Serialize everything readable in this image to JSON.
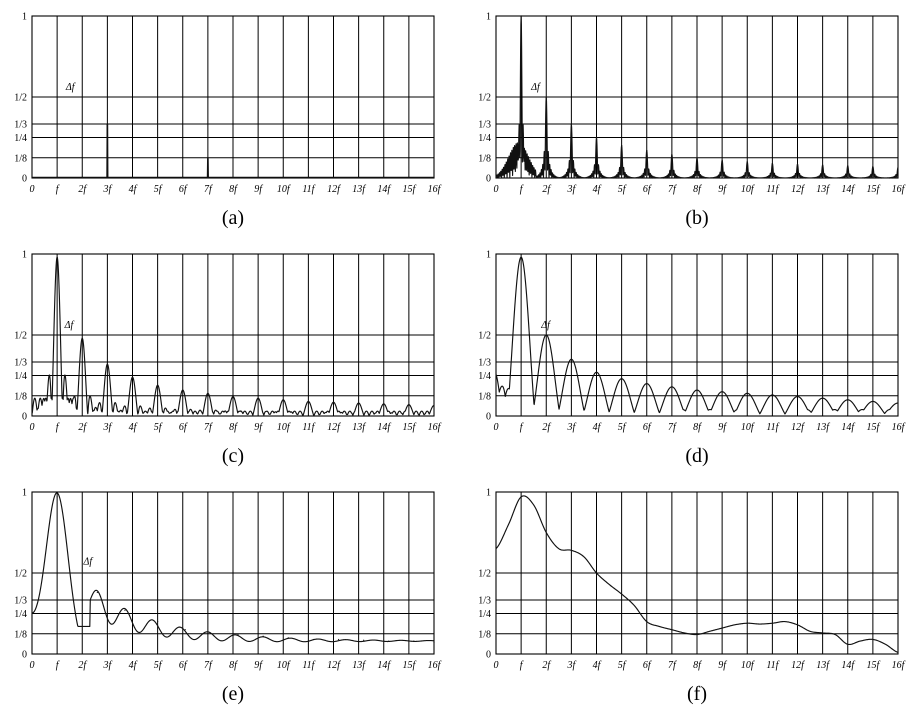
{
  "figure": {
    "x_tick_labels": [
      "0",
      "f",
      "2f",
      "3f",
      "4f",
      "5f",
      "6f",
      "7f",
      "8f",
      "9f",
      "10f",
      "11f",
      "12f",
      "13f",
      "14f",
      "15f",
      "16f"
    ],
    "y_tick_labels": [
      "1",
      "1/2",
      "1/3",
      "1/4",
      "1/8",
      "0"
    ]
  },
  "chart_data": [
    {
      "type": "line",
      "caption": "(a)",
      "annotation": "Δf",
      "xlim": [
        0,
        16
      ],
      "ylim": [
        0,
        1
      ],
      "yticks": [
        1,
        0.5,
        0.333,
        0.25,
        0.125,
        0
      ],
      "grid": true,
      "peaks": {
        "x": [
          1,
          2,
          3,
          4,
          5,
          6,
          7,
          8,
          9,
          10,
          11,
          12,
          13,
          14,
          15,
          16
        ],
        "y": [
          0.005,
          0.005,
          0.33,
          0.005,
          0.005,
          0.005,
          0.12,
          0.005,
          0.005,
          0.005,
          0.005,
          0.005,
          0.005,
          0.005,
          0.005,
          0.005
        ]
      }
    },
    {
      "type": "line",
      "caption": "(b)",
      "annotation": "Δf",
      "xlim": [
        0,
        16
      ],
      "ylim": [
        0,
        1
      ],
      "yticks": [
        1,
        0.5,
        0.333,
        0.25,
        0.125,
        0
      ],
      "grid": true,
      "peaks": {
        "x": [
          1,
          2,
          3,
          4,
          5,
          6,
          7,
          8,
          9,
          10,
          11,
          12,
          13,
          14,
          15,
          16
        ],
        "y": [
          1.0,
          0.5,
          0.33,
          0.25,
          0.2,
          0.17,
          0.145,
          0.125,
          0.11,
          0.1,
          0.09,
          0.085,
          0.08,
          0.075,
          0.07,
          0.065
        ]
      }
    },
    {
      "type": "line",
      "caption": "(c)",
      "annotation": "Δf",
      "xlim": [
        0,
        16
      ],
      "ylim": [
        0,
        1
      ],
      "yticks": [
        1,
        0.5,
        0.333,
        0.25,
        0.125,
        0
      ],
      "grid": true,
      "peaks": {
        "x": [
          1,
          2,
          3,
          4,
          5,
          6,
          7,
          8,
          9,
          10,
          11,
          12,
          13,
          14,
          15,
          16
        ],
        "y": [
          0.98,
          0.48,
          0.32,
          0.24,
          0.19,
          0.16,
          0.14,
          0.12,
          0.11,
          0.1,
          0.09,
          0.085,
          0.08,
          0.075,
          0.07,
          0.065
        ]
      }
    },
    {
      "type": "line",
      "caption": "(d)",
      "annotation": "Δf",
      "xlim": [
        0,
        16
      ],
      "ylim": [
        0,
        1
      ],
      "yticks": [
        1,
        0.5,
        0.333,
        0.25,
        0.125,
        0
      ],
      "grid": true,
      "peaks": {
        "x": [
          1,
          2,
          3,
          4,
          5,
          6,
          7,
          8,
          9,
          10,
          11,
          12,
          13,
          14,
          15,
          16
        ],
        "y": [
          0.98,
          0.5,
          0.35,
          0.27,
          0.23,
          0.2,
          0.18,
          0.16,
          0.15,
          0.14,
          0.13,
          0.12,
          0.11,
          0.1,
          0.09,
          0.08
        ]
      }
    },
    {
      "type": "line",
      "caption": "(e)",
      "annotation": "Δf",
      "xlim": [
        0,
        16
      ],
      "ylim": [
        0,
        1
      ],
      "yticks": [
        1,
        0.5,
        0.333,
        0.25,
        0.125,
        0
      ],
      "grid": true,
      "peaks": {
        "x": [
          1,
          2.6,
          3.7,
          5,
          6.1,
          7.1,
          8.2,
          9.2,
          10.2,
          11.2,
          12.2,
          13.2,
          14.2,
          15.2,
          16
        ],
        "y": [
          0.97,
          0.38,
          0.27,
          0.2,
          0.15,
          0.13,
          0.12,
          0.11,
          0.1,
          0.09,
          0.09,
          0.085,
          0.08,
          0.08,
          0.07
        ]
      }
    },
    {
      "type": "line",
      "caption": "(f)",
      "annotation": "",
      "xlim": [
        0,
        16
      ],
      "ylim": [
        0,
        1
      ],
      "yticks": [
        1,
        0.5,
        0.333,
        0.25,
        0.125,
        0
      ],
      "grid": true,
      "x": [
        0,
        0.5,
        1,
        1.5,
        2,
        2.5,
        3,
        3.5,
        4,
        4.5,
        5,
        5.5,
        6,
        6.5,
        7,
        7.5,
        8,
        8.5,
        9,
        9.5,
        10,
        10.5,
        11,
        11.5,
        12,
        12.5,
        13,
        13.5,
        14,
        14.5,
        15,
        15.5,
        16
      ],
      "y": [
        0.65,
        0.8,
        0.97,
        0.92,
        0.75,
        0.65,
        0.64,
        0.6,
        0.5,
        0.43,
        0.37,
        0.3,
        0.2,
        0.17,
        0.15,
        0.13,
        0.12,
        0.14,
        0.16,
        0.18,
        0.19,
        0.185,
        0.19,
        0.2,
        0.18,
        0.14,
        0.13,
        0.12,
        0.06,
        0.08,
        0.09,
        0.06,
        0.01
      ]
    }
  ]
}
